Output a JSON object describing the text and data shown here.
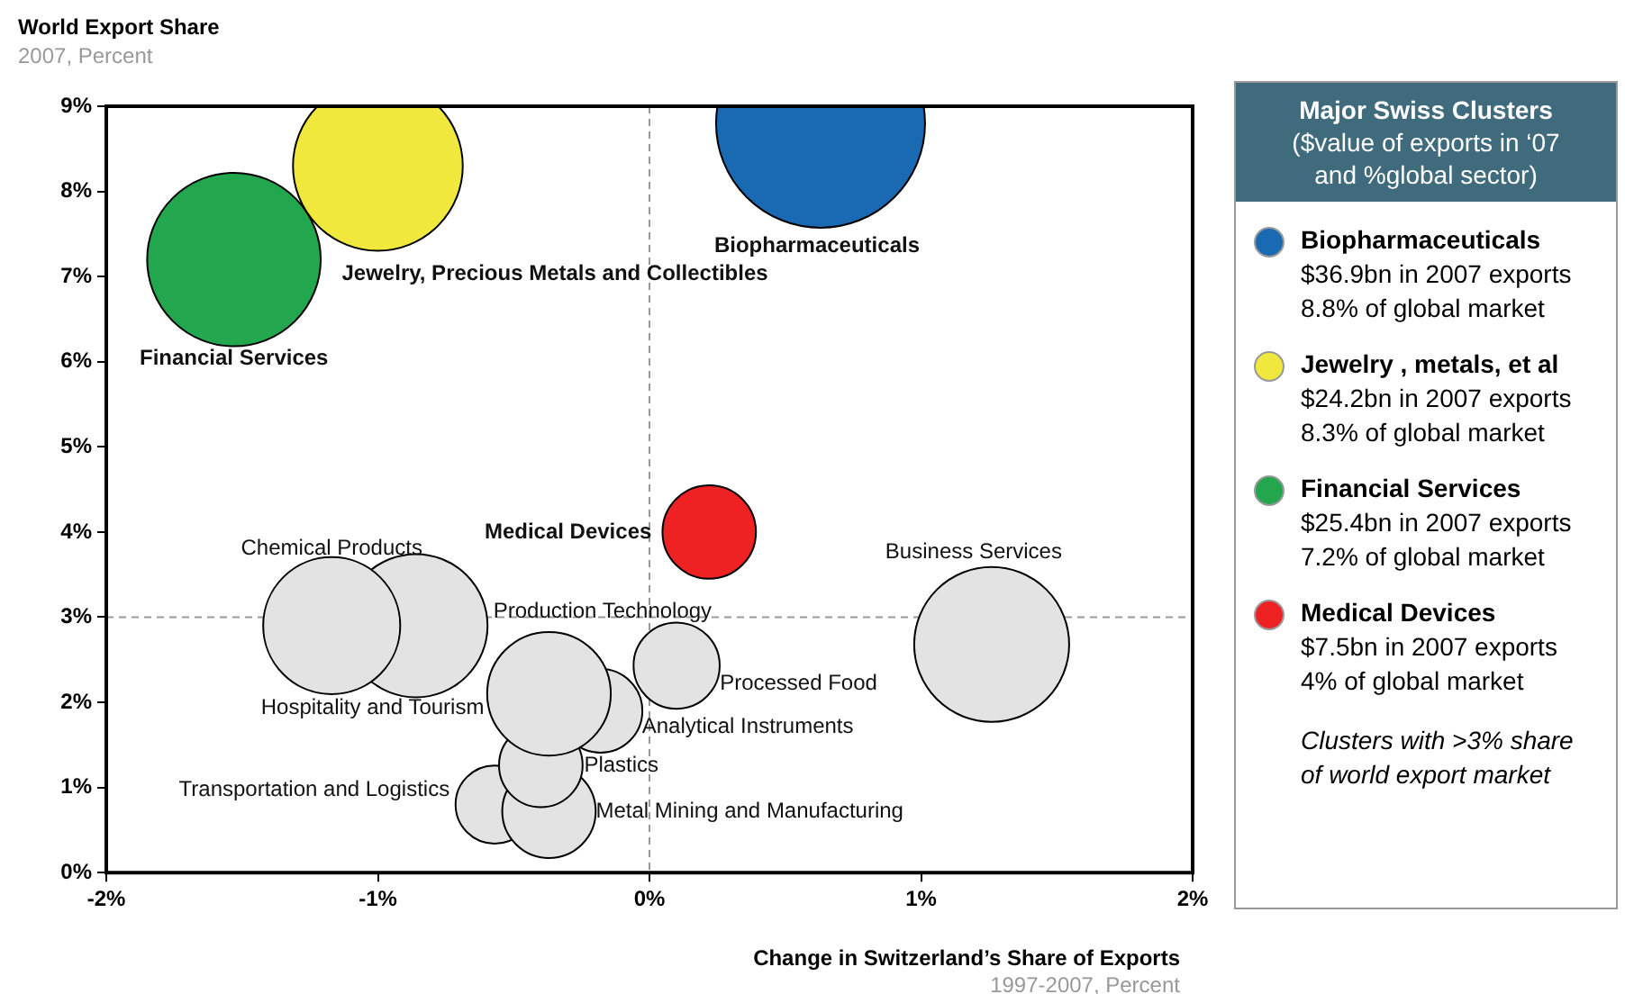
{
  "chart_data": {
    "type": "bubble",
    "ylabel": "World Export Share",
    "xlabel": "Change in Switzerland’s Share of Exports",
    "xlim": [
      -2,
      2
    ],
    "xticks": [
      {
        "value": -2,
        "label": "-2%"
      },
      {
        "value": -1,
        "label": "-1%"
      },
      {
        "value": 0,
        "label": "0%"
      },
      {
        "value": 1,
        "label": "1%"
      },
      {
        "value": 2,
        "label": "2%"
      }
    ],
    "ylim": [
      0,
      9
    ],
    "yticks": [
      {
        "value": 0,
        "label": "0%"
      },
      {
        "value": 1,
        "label": "1%"
      },
      {
        "value": 2,
        "label": "2%"
      },
      {
        "value": 3,
        "label": "3%"
      },
      {
        "value": 4,
        "label": "4%"
      },
      {
        "value": 5,
        "label": "5%"
      },
      {
        "value": 6,
        "label": "6%"
      },
      {
        "value": 7,
        "label": "7%"
      },
      {
        "value": 8,
        "label": "8%"
      },
      {
        "value": 9,
        "label": "9%"
      }
    ],
    "ref_lines": [
      {
        "axis": "x",
        "value": 0,
        "color": "#999999",
        "line_style": "dashed"
      },
      {
        "axis": "y",
        "value": 3,
        "color": "#999999",
        "line_style": "dashed"
      }
    ],
    "series": [
      {
        "name": "Biopharmaceuticals",
        "color": "#1a6ab3",
        "x": [
          0.63
        ],
        "values": [
          8.8
        ],
        "sizes": [
          1
        ]
      },
      {
        "name": "Jewelry, Precious Metals and Collectibles",
        "color": "#f0e83c",
        "x": [
          -1.0
        ],
        "values": [
          8.3
        ],
        "sizes": [
          0.66
        ]
      },
      {
        "name": "Financial Services",
        "color": "#22a64e",
        "x": [
          -1.53
        ],
        "values": [
          7.2
        ],
        "sizes": [
          0.69
        ]
      },
      {
        "name": "Medical Devices",
        "color": "#ee2222",
        "x": [
          0.22
        ],
        "values": [
          4.0
        ],
        "sizes": [
          0.2
        ]
      },
      {
        "name": "Chemical Products",
        "color": "#e3e3e3",
        "x": [
          -1.17
        ],
        "values": [
          2.9
        ],
        "sizes": [
          0.43
        ]
      },
      {
        "name": "Production Technology",
        "color": "#e3e3e3",
        "x": [
          -0.86
        ],
        "values": [
          2.9
        ],
        "sizes": [
          0.47
        ]
      },
      {
        "name": "Hospitality and Tourism",
        "color": "#e3e3e3",
        "x": [
          -0.37
        ],
        "values": [
          2.1
        ],
        "sizes": [
          0.35
        ]
      },
      {
        "name": "Analytical Instruments",
        "color": "#e3e3e3",
        "x": [
          -0.18
        ],
        "values": [
          1.9
        ],
        "sizes": [
          0.16
        ]
      },
      {
        "name": "Processed Food",
        "color": "#e3e3e3",
        "x": [
          0.1
        ],
        "values": [
          2.43
        ],
        "sizes": [
          0.17
        ]
      },
      {
        "name": "Business Services",
        "color": "#e3e3e3",
        "x": [
          1.26
        ],
        "values": [
          2.68
        ],
        "sizes": [
          0.55
        ]
      },
      {
        "name": "Plastics",
        "color": "#e3e3e3",
        "x": [
          -0.4
        ],
        "values": [
          1.26
        ],
        "sizes": [
          0.16
        ]
      },
      {
        "name": "Metal Mining and Manufacturing",
        "color": "#e3e3e3",
        "x": [
          -0.37
        ],
        "values": [
          0.72
        ],
        "sizes": [
          0.2
        ]
      },
      {
        "name": "Transportation and Logistics",
        "color": "#e3e3e3",
        "x": [
          -0.57
        ],
        "values": [
          0.8
        ],
        "sizes": [
          0.14
        ]
      }
    ],
    "annotations": [
      "2007, Percent",
      "1997-2007, Percent",
      "Major Swiss Clusters\n($value of exports in ‘07\nand %global sector)",
      "Biopharmaceuticals\n$36.9bn in 2007 exports\n8.8% of global market",
      "Jewelry , metals, et al\n$24.2bn in 2007 exports\n8.3% of global market",
      "Financial Services\n$25.4bn in 2007 exports\n7.2% of global market",
      "Medical Devices\n$7.5bn in 2007 exports\n4% of global market",
      "Clusters with >3% share\nof world export market"
    ]
  }
}
